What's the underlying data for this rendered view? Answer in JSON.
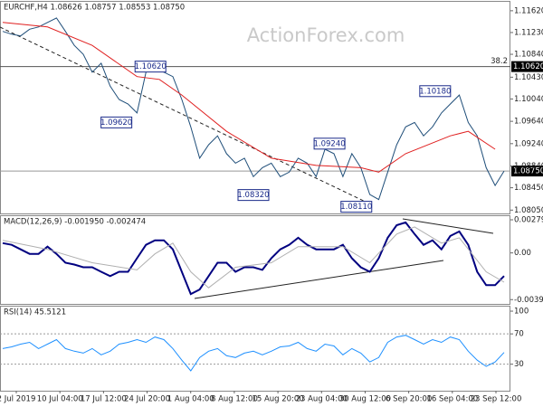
{
  "chart_data": [
    {
      "type": "line",
      "title": "EURCHF,H4  1.08626 1.08757 1.08553 1.08750",
      "watermark": "ActionForex.com",
      "fib_label": "38.2",
      "ylim": [
        1.0799,
        1.1178
      ],
      "yticks": [
        {
          "value": 1.1162,
          "label": "1.11620"
        },
        {
          "value": 1.1123,
          "label": "1.11230"
        },
        {
          "value": 1.1084,
          "label": "1.10840"
        },
        {
          "value": 1.1043,
          "label": "1.10430"
        },
        {
          "value": 1.1004,
          "label": "1.10040"
        },
        {
          "value": 1.0964,
          "label": "1.09640"
        },
        {
          "value": 1.0924,
          "label": "1.09240"
        },
        {
          "value": 1.0884,
          "label": "1.08840"
        },
        {
          "value": 1.0845,
          "label": "1.08450"
        },
        {
          "value": 1.0805,
          "label": "1.08050"
        }
      ],
      "levels": [
        {
          "value": 1.1062,
          "label": "1.10620"
        },
        {
          "value": 1.0875,
          "label": "1.08750"
        }
      ],
      "annotations": [
        {
          "x": 16.5,
          "value": 1.1062,
          "label": "1.10620"
        },
        {
          "x": 12.7,
          "value": 1.0962,
          "label": "1.09620"
        },
        {
          "x": 28,
          "value": 1.0832,
          "label": "1.08320"
        },
        {
          "x": 36.5,
          "value": 1.0924,
          "label": "1.09240"
        },
        {
          "x": 39.5,
          "value": 1.0811,
          "label": "1.08110"
        },
        {
          "x": 48.3,
          "value": 1.1018,
          "label": "1.10180"
        }
      ],
      "series": [
        {
          "color": "#1f4e79",
          "values": [
            1.1125,
            1.112,
            1.1117,
            1.1129,
            1.1133,
            1.1141,
            1.1149,
            1.1125,
            1.11,
            1.1084,
            1.1052,
            1.1068,
            1.1027,
            1.1003,
            1.0995,
            1.0979,
            1.1052,
            1.1055,
            1.1052,
            1.1044,
            1.1003,
            1.0954,
            1.0898,
            1.0922,
            1.0938,
            1.0906,
            1.0889,
            1.0898,
            1.0865,
            1.0881,
            1.0889,
            1.0865,
            1.0873,
            1.0898,
            1.0889,
            1.0865,
            1.0914,
            1.0906,
            1.0865,
            1.0906,
            1.0881,
            1.0833,
            1.0824,
            1.0873,
            1.0922,
            1.0954,
            1.0962,
            1.0938,
            1.0954,
            1.0979,
            1.0995,
            1.1011,
            1.0962,
            1.0938,
            1.0881,
            1.0849,
            1.0875
          ]
        },
        {
          "color": "#e02020",
          "x": [
            0,
            5,
            10,
            15,
            17.5,
            20,
            25,
            30,
            35,
            40,
            42,
            45,
            50,
            52,
            55
          ],
          "values": [
            1.1141,
            1.1133,
            1.11,
            1.1044,
            1.1039,
            1.1011,
            1.0946,
            1.0898,
            1.0885,
            1.0881,
            1.0873,
            1.0906,
            1.0938,
            1.0946,
            1.0914
          ]
        }
      ]
    },
    {
      "type": "line",
      "title": "MACD(12,26,9) -0.001950 -0.002474",
      "ylim": [
        -0.0043,
        0.0031
      ],
      "yticks": [
        0.002793,
        {
          "value": 0,
          "label": "0.00"
        },
        -0.003938
      ],
      "series": [
        {
          "color": "#000080",
          "values": [
            0.00083,
            0.00068,
            0.0003,
            -8e-05,
            -8e-05,
            0.00053,
            -8e-05,
            -0.00083,
            -0.00098,
            -0.00121,
            -0.00121,
            -0.00159,
            -0.00196,
            -0.00159,
            -0.00159,
            -0.00045,
            0.00068,
            0.00106,
            0.00106,
            0.0003,
            -0.00159,
            -0.00347,
            -0.00309,
            -0.00196,
            -0.00083,
            -0.00083,
            -0.00159,
            -0.00121,
            -0.00121,
            -0.00143,
            -0.00045,
            0.0003,
            0.00068,
            0.00128,
            0.00068,
            0.0003,
            0.0003,
            0.0003,
            0.00068,
            -0.00045,
            -0.00121,
            -0.00159,
            -0.00045,
            0.00128,
            0.00234,
            0.00257,
            0.00159,
            0.00068,
            0.00106,
            0.0003,
            0.00143,
            0.00181,
            0.00068,
            -0.00159,
            -0.00272,
            -0.00272,
            -0.00195
          ]
        },
        {
          "color": "#b0b0b0",
          "x": [
            0,
            5,
            10,
            15,
            17,
            19,
            21,
            23,
            26,
            30,
            33,
            38,
            41,
            44,
            46,
            49,
            51,
            54,
            56
          ],
          "values": [
            0.00106,
            0.0003,
            -0.00083,
            -0.00143,
            -8e-05,
            0.00083,
            -0.00159,
            -0.00294,
            -0.00121,
            -0.00083,
            0.00053,
            0.00053,
            -0.00083,
            0.00159,
            0.00219,
            0.00083,
            0.00128,
            -0.00159,
            -0.00247
          ]
        }
      ]
    },
    {
      "type": "line",
      "title": "RSI(14) 45.5121",
      "ylim": [
        -5,
        106
      ],
      "yticks": [
        100,
        70,
        30
      ],
      "levels": [
        70,
        30
      ],
      "xtick_labels": [
        "2 Jul 2019",
        "10 Jul 04:00",
        "17 Jul 12:00",
        "24 Jul 20:00",
        "1 Aug 04:00",
        "8 Aug 12:00",
        "15 Aug 20:00",
        "23 Aug 04:00",
        "30 Aug 12:00",
        "6 Sep 20:00",
        "16 Sep 04:00",
        "23 Sep 12:00"
      ],
      "series": [
        {
          "color": "#1e90ff",
          "values": [
            50.6,
            52.9,
            56.5,
            58.8,
            50.6,
            56.5,
            62.4,
            50.6,
            47.1,
            44.7,
            50.6,
            42.4,
            47.1,
            56.5,
            58.8,
            62.4,
            58.8,
            65.9,
            62.4,
            50.6,
            35.3,
            21.2,
            38.8,
            47.1,
            50.6,
            41.2,
            38.8,
            44.7,
            47.1,
            42.4,
            47.1,
            52.9,
            54.1,
            58.8,
            50.6,
            47.1,
            56.5,
            54.1,
            42.4,
            50.6,
            44.7,
            32.9,
            38.8,
            58.8,
            65.9,
            68.2,
            62.4,
            56.5,
            62.4,
            58.8,
            65.9,
            62.4,
            47.1,
            35.3,
            27.1,
            32.9,
            45.5
          ]
        }
      ]
    }
  ]
}
